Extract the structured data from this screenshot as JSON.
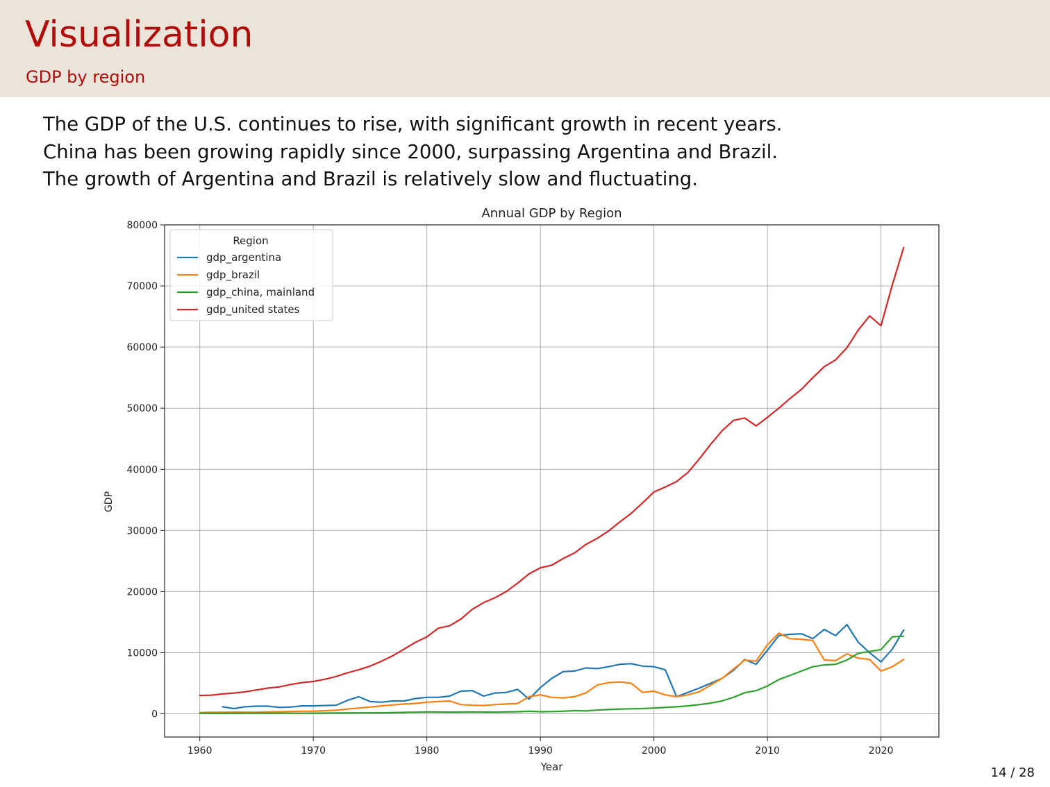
{
  "slide": {
    "title": "Visualization",
    "subtitle": "GDP by region",
    "bullets": [
      "The GDP of the U.S. continues to rise, with significant growth in recent years.",
      "China has been growing rapidly since 2000, surpassing Argentina and Brazil.",
      "The growth of Argentina and Brazil is relatively slow and fluctuating."
    ],
    "page_number": "14 / 28"
  },
  "colors": {
    "title": "#b00c0c",
    "header_background": "#ece4d8",
    "text": "#111111"
  },
  "chart_data": {
    "type": "line",
    "title": "Annual GDP by Region",
    "xlabel": "Year",
    "ylabel": "GDP",
    "xlim": [
      1956.9,
      2025.1
    ],
    "ylim": [
      -3800,
      80000
    ],
    "xticks": [
      1960,
      1970,
      1980,
      1990,
      2000,
      2010,
      2020
    ],
    "yticks": [
      0,
      10000,
      20000,
      30000,
      40000,
      50000,
      60000,
      70000,
      80000
    ],
    "grid": true,
    "legend": {
      "title": "Region",
      "position": "top-left"
    },
    "series": [
      {
        "name": "gdp_argentina",
        "color": "#1f77b4",
        "x": [
          1962,
          1963,
          1964,
          1965,
          1966,
          1967,
          1968,
          1969,
          1970,
          1971,
          1972,
          1973,
          1974,
          1975,
          1976,
          1977,
          1978,
          1979,
          1980,
          1981,
          1982,
          1983,
          1984,
          1985,
          1986,
          1987,
          1988,
          1989,
          1990,
          1991,
          1992,
          1993,
          1994,
          1995,
          1996,
          1997,
          1998,
          1999,
          2000,
          2001,
          2002,
          2003,
          2004,
          2005,
          2006,
          2007,
          2008,
          2009,
          2010,
          2011,
          2012,
          2013,
          2014,
          2015,
          2016,
          2017,
          2018,
          2019,
          2020,
          2021,
          2022
        ],
        "y": [
          1150,
          850,
          1150,
          1250,
          1250,
          1050,
          1100,
          1300,
          1300,
          1350,
          1400,
          2200,
          2800,
          2000,
          1900,
          2100,
          2100,
          2500,
          2700,
          2700,
          2900,
          3700,
          3800,
          2900,
          3400,
          3500,
          4000,
          2400,
          4300,
          5800,
          6900,
          7000,
          7500,
          7400,
          7700,
          8100,
          8200,
          7800,
          7700,
          7200,
          2800,
          3500,
          4200,
          5000,
          5800,
          7100,
          8900,
          8100,
          10400,
          12800,
          13000,
          13100,
          12300,
          13800,
          12800,
          14600,
          11700,
          10000,
          8500,
          10600,
          13700
        ]
      },
      {
        "name": "gdp_brazil",
        "color": "#ff7f0e",
        "x": [
          1960,
          1961,
          1962,
          1963,
          1964,
          1965,
          1966,
          1967,
          1968,
          1969,
          1970,
          1971,
          1972,
          1973,
          1974,
          1975,
          1976,
          1977,
          1978,
          1979,
          1980,
          1981,
          1982,
          1983,
          1984,
          1985,
          1986,
          1987,
          1988,
          1989,
          1990,
          1991,
          1992,
          1993,
          1994,
          1995,
          1996,
          1997,
          1998,
          1999,
          2000,
          2001,
          2002,
          2003,
          2004,
          2005,
          2006,
          2007,
          2008,
          2009,
          2010,
          2011,
          2012,
          2013,
          2014,
          2015,
          2016,
          2017,
          2018,
          2019,
          2020,
          2021,
          2022
        ],
        "y": [
          200,
          250,
          250,
          280,
          260,
          270,
          320,
          350,
          380,
          420,
          440,
          500,
          580,
          780,
          950,
          1100,
          1300,
          1450,
          1600,
          1700,
          1900,
          2000,
          2100,
          1500,
          1400,
          1350,
          1500,
          1600,
          1700,
          2800,
          3100,
          2700,
          2600,
          2800,
          3400,
          4700,
          5100,
          5200,
          5000,
          3500,
          3700,
          3100,
          2800,
          3100,
          3600,
          4700,
          5800,
          7300,
          8800,
          8600,
          11300,
          13200,
          12300,
          12200,
          12000,
          8800,
          8700,
          9800,
          9100,
          8900,
          7000,
          7700,
          8900
        ]
      },
      {
        "name": "gdp_china, mainland",
        "color": "#2ca02c",
        "x": [
          1960,
          1962,
          1964,
          1966,
          1968,
          1970,
          1972,
          1974,
          1976,
          1978,
          1980,
          1982,
          1984,
          1986,
          1988,
          1989,
          1990,
          1991,
          1992,
          1993,
          1994,
          1995,
          1996,
          1997,
          1998,
          1999,
          2000,
          2001,
          2002,
          2003,
          2004,
          2005,
          2006,
          2007,
          2008,
          2009,
          2010,
          2011,
          2012,
          2013,
          2014,
          2015,
          2016,
          2017,
          2018,
          2019,
          2020,
          2021,
          2022
        ],
        "y": [
          90,
          70,
          90,
          100,
          90,
          110,
          130,
          150,
          160,
          230,
          310,
          280,
          300,
          280,
          350,
          410,
          350,
          370,
          420,
          520,
          470,
          610,
          700,
          780,
          820,
          860,
          950,
          1050,
          1150,
          1300,
          1500,
          1750,
          2100,
          2700,
          3450,
          3800,
          4550,
          5600,
          6300,
          7000,
          7700,
          8000,
          8100,
          8800,
          9900,
          10200,
          10500,
          12600,
          12700
        ]
      },
      {
        "name": "gdp_united states",
        "color": "#d62728",
        "x": [
          1960,
          1961,
          1962,
          1963,
          1964,
          1965,
          1966,
          1967,
          1968,
          1969,
          1970,
          1971,
          1972,
          1973,
          1974,
          1975,
          1976,
          1977,
          1978,
          1979,
          1980,
          1981,
          1982,
          1983,
          1984,
          1985,
          1986,
          1987,
          1988,
          1989,
          1990,
          1991,
          1992,
          1993,
          1994,
          1995,
          1996,
          1997,
          1998,
          1999,
          2000,
          2001,
          2002,
          2003,
          2004,
          2005,
          2006,
          2007,
          2008,
          2009,
          2010,
          2011,
          2012,
          2013,
          2014,
          2015,
          2016,
          2017,
          2018,
          2019,
          2020,
          2021,
          2022
        ],
        "y": [
          3000,
          3050,
          3250,
          3400,
          3600,
          3900,
          4200,
          4400,
          4800,
          5100,
          5300,
          5650,
          6100,
          6700,
          7200,
          7800,
          8600,
          9500,
          10600,
          11700,
          12600,
          14000,
          14400,
          15500,
          17100,
          18200,
          19000,
          20000,
          21400,
          22900,
          23900,
          24300,
          25400,
          26300,
          27700,
          28700,
          29900,
          31400,
          32800,
          34500,
          36300,
          37100,
          38000,
          39500,
          41700,
          44100,
          46300,
          48000,
          48400,
          47100,
          48500,
          50000,
          51600,
          53100,
          55000,
          56800,
          57900,
          59900,
          62800,
          65100,
          63500,
          70200,
          76300
        ]
      }
    ]
  }
}
